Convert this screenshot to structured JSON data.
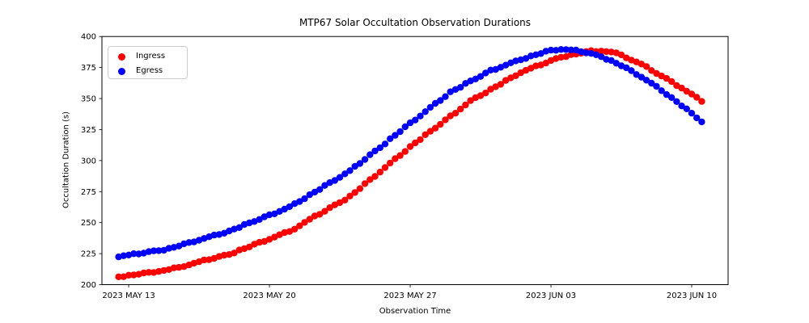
{
  "chart_data": {
    "type": "scatter",
    "title": "MTP67 Solar Occultation Observation Durations",
    "xlabel": "Observation Time",
    "ylabel": "Occultation Duration (s)",
    "x_unit": "days since 2023 MAY 13",
    "xlim": [
      -1.33,
      29.81
    ],
    "ylim": [
      200,
      400
    ],
    "grid": false,
    "x_ticks": [
      {
        "pos": 0,
        "label": "2023 MAY 13"
      },
      {
        "pos": 7,
        "label": "2023 MAY 20"
      },
      {
        "pos": 14,
        "label": "2023 MAY 27"
      },
      {
        "pos": 21,
        "label": "2023 JUN 03"
      },
      {
        "pos": 28,
        "label": "2023 JUN 10"
      }
    ],
    "y_ticks": [
      200,
      225,
      250,
      275,
      300,
      325,
      350,
      375,
      400
    ],
    "legend": {
      "position": "upper left",
      "entries": [
        {
          "label": "Ingress",
          "color": "#ff0000"
        },
        {
          "label": "Egress",
          "color": "#0000ff"
        }
      ]
    },
    "x": [
      -0.5,
      0,
      0.5,
      1,
      1.5,
      2,
      2.5,
      3,
      3.5,
      4,
      4.5,
      5,
      5.5,
      6,
      6.5,
      7,
      7.5,
      8,
      8.5,
      9,
      9.5,
      10,
      10.5,
      11,
      11.5,
      12,
      12.5,
      13,
      13.5,
      14,
      14.5,
      15,
      15.5,
      16,
      16.5,
      17,
      17.5,
      18,
      18.5,
      19,
      19.5,
      20,
      20.5,
      21,
      21.5,
      22,
      22.5,
      23,
      23.5,
      24,
      24.5,
      25,
      25.5,
      26,
      26.5,
      27,
      27.5,
      28,
      28.5
    ],
    "series": [
      {
        "name": "Ingress",
        "color": "#ff0000",
        "y": [
          206.3,
          207.6,
          208.3,
          209.9,
          210.7,
          212.2,
          213.9,
          215.9,
          218.5,
          220.1,
          222.7,
          224.3,
          227.9,
          230.4,
          234.1,
          236.5,
          240.2,
          242.8,
          247.4,
          252.7,
          256.7,
          262.0,
          266.1,
          271.4,
          277.4,
          284.7,
          290.7,
          298.0,
          304.1,
          311.3,
          316.9,
          323.6,
          329.2,
          336.0,
          341.5,
          348.3,
          352.3,
          357.5,
          361.5,
          366.7,
          370.8,
          374.4,
          377.0,
          380.7,
          383.3,
          385.4,
          386.5,
          388.6,
          388.2,
          387.5,
          385.2,
          381.0,
          377.8,
          372.6,
          368.2,
          363.7,
          358.4,
          353.6,
          347.7
        ]
      },
      {
        "name": "Egress",
        "color": "#0000ff",
        "y": [
          222.4,
          223.9,
          224.7,
          226.6,
          227.4,
          229.3,
          231.1,
          234.0,
          235.8,
          238.6,
          240.4,
          243.3,
          246.0,
          249.8,
          252.5,
          256.3,
          259.0,
          262.9,
          267.0,
          272.5,
          276.7,
          282.2,
          286.4,
          291.9,
          297.6,
          304.7,
          310.4,
          317.6,
          323.3,
          330.4,
          335.9,
          342.9,
          348.4,
          355.4,
          359.0,
          364.2,
          367.8,
          372.9,
          375.2,
          378.8,
          381.2,
          384.3,
          386.3,
          389.0,
          389.5,
          389.2,
          387.7,
          386.4,
          383.7,
          380.7,
          376.4,
          372.5,
          367.2,
          362.4,
          356.3,
          350.8,
          344.0,
          338.2,
          331.2
        ]
      }
    ]
  }
}
